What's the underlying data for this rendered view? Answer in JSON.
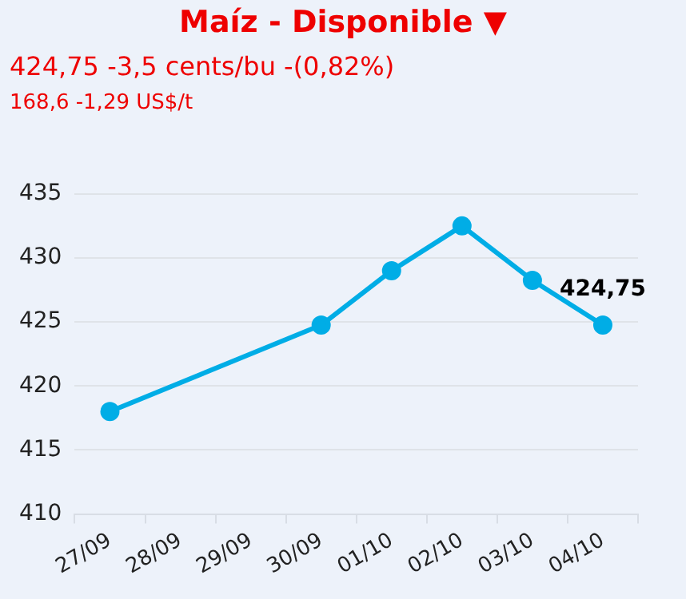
{
  "chart_data": {
    "type": "line",
    "title": "Maíz - Disponible ▼",
    "subtitle": "424,75 -3,5 cents/bu -(0,82%)",
    "annotations": [
      "168,6 -1,29 US$/t"
    ],
    "categories": [
      "27/09",
      "28/09",
      "29/09",
      "30/09",
      "01/10",
      "02/10",
      "03/10",
      "04/10"
    ],
    "series": [
      {
        "color": "#00ade6",
        "values": [
          418,
          null,
          null,
          424.75,
          429,
          432.5,
          428.25,
          424.75
        ],
        "value_labels": [
          null,
          null,
          null,
          null,
          null,
          null,
          null,
          "424,75"
        ]
      }
    ],
    "ylim": [
      410,
      435
    ],
    "yticks": [
      410,
      415,
      420,
      425,
      430,
      435
    ],
    "grid": "y",
    "legend": false,
    "marker": "circle",
    "line_style": "solid"
  }
}
